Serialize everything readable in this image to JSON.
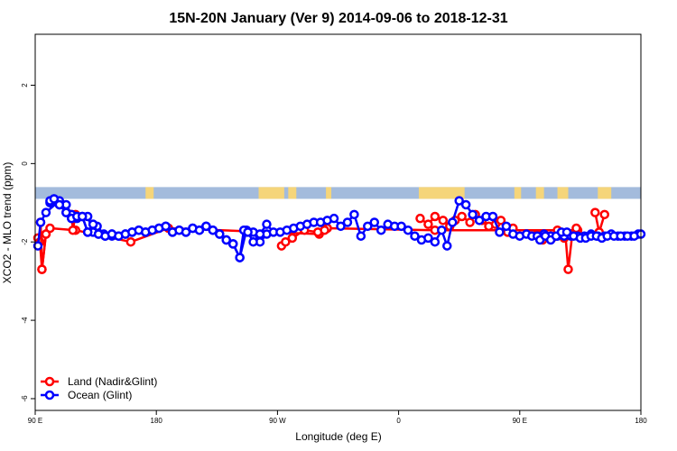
{
  "chart_data": {
    "type": "line",
    "title": "15N-20N January (Ver 9)   2014-09-06 to 2018-12-31",
    "xlabel": "Longitude (deg E)",
    "ylabel": "XCO2 - MLO trend (ppm)",
    "xlim": [
      90,
      540
    ],
    "ylim": [
      -6.3,
      3.3
    ],
    "xticks": [
      {
        "value": 90,
        "label": "90 E"
      },
      {
        "value": 180,
        "label": "180"
      },
      {
        "value": 270,
        "label": "90 W"
      },
      {
        "value": 360,
        "label": "0"
      },
      {
        "value": 450,
        "label": "90 E"
      },
      {
        "value": 540,
        "label": "180"
      }
    ],
    "yticks": [
      {
        "value": -6,
        "label": "-6"
      },
      {
        "value": -4,
        "label": "-4"
      },
      {
        "value": -2,
        "label": "-2"
      },
      {
        "value": 0,
        "label": "0"
      },
      {
        "value": 2,
        "label": "2"
      }
    ],
    "land_mask_band": {
      "y_top": -0.6,
      "y_bottom": -0.9,
      "ocean_color": "#a3bbdc",
      "land_color": "#f5d57a"
    },
    "land_segments": [
      [
        172,
        178
      ],
      [
        256,
        275
      ],
      [
        278,
        284
      ],
      [
        306,
        310
      ],
      [
        375,
        409
      ],
      [
        446,
        451
      ],
      [
        462,
        468
      ],
      [
        478,
        486
      ],
      [
        508,
        518
      ]
    ],
    "legend": {
      "position": "bottom-left"
    },
    "series": [
      {
        "name": "Land (Nadir&Glint)",
        "color": "#ff0000",
        "x": [
          92,
          93.5,
          95,
          98,
          101,
          120,
          161,
          189,
          301,
          307,
          387,
          493
        ],
        "y": [
          -1.9,
          -2.0,
          -2.7,
          -1.8,
          -1.65,
          -1.7,
          -2.0,
          -1.65,
          -1.8,
          -1.65,
          -1.7,
          -1.7
        ]
      },
      {
        "name": "Land (Nadir&Glint)",
        "color": "#ff0000",
        "x": [
          94,
          95,
          98
        ],
        "y": [
          -1.5,
          -2.7,
          -1.8
        ]
      },
      {
        "name": "Land (Nadir&Glint)",
        "color": "#ff0000",
        "x": [
          117,
          118,
          120
        ],
        "y": [
          -1.3,
          -1.7,
          -1.3
        ]
      },
      {
        "name": "Land (Nadir&Glint)",
        "color": "#ff0000",
        "x": [
          273,
          276,
          281,
          290,
          300,
          305
        ],
        "y": [
          -2.1,
          -2.0,
          -1.9,
          -1.7,
          -1.75,
          -1.7
        ]
      },
      {
        "name": "Land (Nadir&Glint)",
        "color": "#ff0000",
        "x": [
          376,
          382,
          387,
          393,
          398,
          402,
          407,
          413,
          417,
          422,
          427,
          432,
          436,
          441,
          445
        ],
        "y": [
          -1.4,
          -1.55,
          -1.35,
          -1.45,
          -1.6,
          -1.45,
          -1.35,
          -1.5,
          -1.3,
          -1.45,
          -1.6,
          -1.55,
          -1.45,
          -1.75,
          -1.65
        ]
      },
      {
        "name": "Land (Nadir&Glint)",
        "color": "#ff0000",
        "x": [
          463,
          467,
          470,
          474,
          478,
          483
        ],
        "y": [
          -1.8,
          -1.95,
          -1.85,
          -1.9,
          -1.7,
          -1.9
        ]
      },
      {
        "name": "Land (Nadir&Glint)",
        "color": "#ff0000",
        "x": [
          484,
          486,
          489,
          492
        ],
        "y": [
          -1.85,
          -2.7,
          -1.8,
          -1.65
        ]
      },
      {
        "name": "Land (Nadir&Glint)",
        "color": "#ff0000",
        "x": [
          506,
          509,
          513
        ],
        "y": [
          -1.25,
          -1.75,
          -1.3
        ]
      },
      {
        "name": "Ocean (Glint)",
        "color": "#0000ff",
        "x": [
          92,
          94,
          98,
          108,
          113,
          117,
          121,
          129,
          133,
          136,
          141,
          147
        ],
        "y": [
          -2.1,
          -1.5,
          -1.25,
          -0.95,
          -1.05,
          -1.3,
          -1.4,
          -1.35,
          -1.75,
          -1.6,
          -1.8,
          -1.85
        ]
      },
      {
        "name": "Ocean (Glint)",
        "color": "#0000ff",
        "x": [
          101,
          104,
          108,
          113,
          117,
          121,
          125,
          129,
          133,
          137,
          142,
          147,
          152,
          157,
          162,
          167,
          172,
          177,
          182,
          187,
          192,
          197,
          202,
          207,
          212,
          217,
          222,
          227,
          232,
          237,
          242,
          247,
          252,
          257,
          262
        ],
        "y": [
          -1.0,
          -0.9,
          -1.05,
          -1.25,
          -1.4,
          -1.35,
          -1.35,
          -1.75,
          -1.55,
          -1.8,
          -1.85,
          -1.8,
          -1.85,
          -1.8,
          -1.75,
          -1.7,
          -1.75,
          -1.7,
          -1.65,
          -1.6,
          -1.75,
          -1.7,
          -1.75,
          -1.65,
          -1.7,
          -1.6,
          -1.7,
          -1.8,
          -1.95,
          -2.05,
          -2.4,
          -1.7,
          -1.75,
          -2.0,
          -1.8
        ]
      },
      {
        "name": "Ocean (Glint)",
        "color": "#0000ff",
        "x": [
          101,
          104,
          108,
          113,
          117,
          121,
          125,
          129
        ],
        "y": [
          -0.95,
          -0.9,
          -1.05,
          -1.25,
          -1.4,
          -1.35,
          -1.35,
          -1.75
        ]
      },
      {
        "name": "Ocean (Glint)",
        "color": "#0000ff",
        "x": [
          133,
          137,
          142,
          147,
          152,
          157,
          162,
          167,
          172,
          177,
          182,
          187,
          192,
          197,
          202,
          207,
          212,
          217,
          222,
          227,
          232,
          237,
          242,
          245,
          248,
          252,
          257,
          262,
          267,
          272,
          277,
          282,
          287,
          292,
          297,
          302,
          307,
          312,
          317,
          322,
          327,
          332,
          337,
          342,
          347,
          352,
          357
        ],
        "y": [
          -1.55,
          -1.8,
          -1.85,
          -1.8,
          -1.85,
          -1.8,
          -1.75,
          -1.7,
          -1.75,
          -1.7,
          -1.65,
          -1.6,
          -1.75,
          -1.7,
          -1.75,
          -1.65,
          -1.7,
          -1.6,
          -1.7,
          -1.8,
          -1.95,
          -2.05,
          -2.4,
          -1.7,
          -1.75,
          -2.0,
          -1.8,
          -1.55,
          -1.75,
          -1.75,
          -1.7,
          -1.65,
          -1.6,
          -1.55,
          -1.5,
          -1.5,
          -1.45,
          -1.4,
          -1.6,
          -1.5,
          -1.3,
          -1.85,
          -1.6,
          -1.5,
          -1.7,
          -1.55,
          -1.6
        ]
      },
      {
        "name": "Ocean (Glint)",
        "color": "#0000ff",
        "x": [
          362,
          367,
          372,
          377,
          382,
          387,
          392,
          396,
          400,
          405,
          410,
          415,
          420,
          425,
          430,
          435,
          440,
          445,
          450,
          455,
          459,
          463,
          468,
          473,
          478,
          483,
          488,
          493,
          498,
          503,
          508,
          513,
          518,
          523,
          528,
          533,
          538
        ],
        "y": [
          -1.6,
          -1.7,
          -1.85,
          -1.95,
          -1.9,
          -2.0,
          -1.7,
          -2.1,
          -1.5,
          -0.95,
          -1.05,
          -1.3,
          -1.45,
          -1.35,
          -1.35,
          -1.75,
          -1.6,
          -1.8,
          -1.85,
          -1.8,
          -1.85,
          -1.85,
          -1.8,
          -1.85,
          -1.85,
          -1.85,
          -1.85,
          -1.85,
          -1.85,
          -1.8,
          -1.85,
          -1.85,
          -1.8,
          -1.85,
          -1.85,
          -1.85,
          -1.8
        ]
      },
      {
        "name": "Ocean (Glint)",
        "color": "#0000ff",
        "x": [
          465,
          469,
          473,
          477,
          481,
          485,
          490,
          495,
          499,
          503,
          507,
          511,
          515,
          520,
          525,
          530,
          535,
          540
        ],
        "y": [
          -1.95,
          -1.85,
          -1.95,
          -1.85,
          -1.75,
          -1.75,
          -1.85,
          -1.9,
          -1.9,
          -1.85,
          -1.85,
          -1.9,
          -1.85,
          -1.85,
          -1.85,
          -1.85,
          -1.85,
          -1.8
        ]
      }
    ]
  },
  "legend_items": [
    {
      "label": "Land (Nadir&Glint)",
      "color": "#ff0000"
    },
    {
      "label": "Ocean (Glint)",
      "color": "#0000ff"
    }
  ]
}
